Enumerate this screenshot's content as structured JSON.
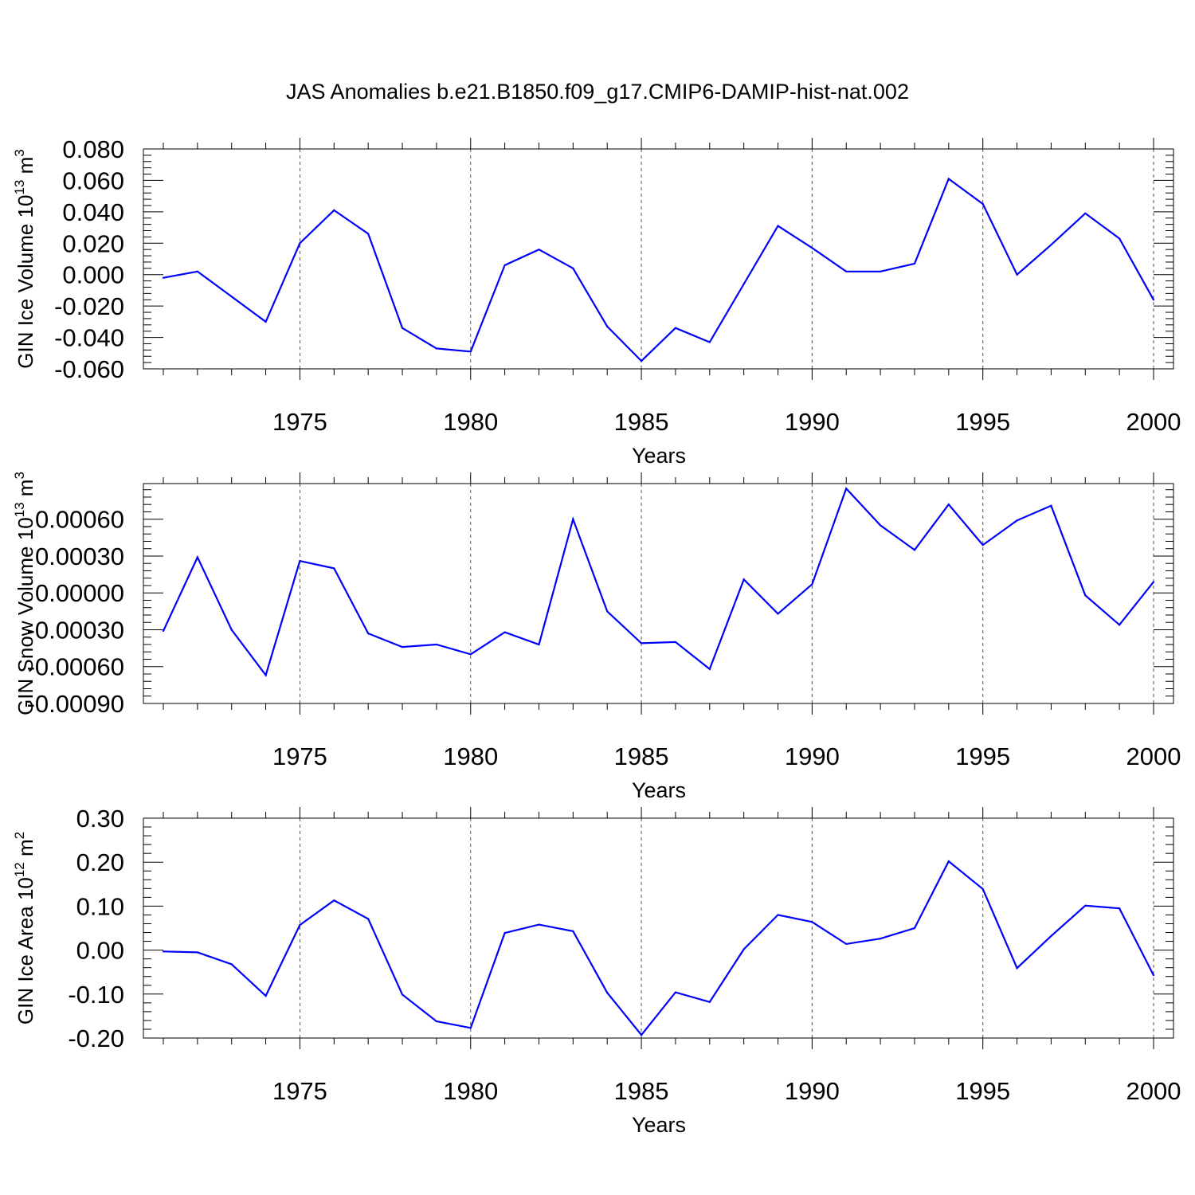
{
  "title": "JAS Anomalies b.e21.B1850.f09_g17.CMIP6-DAMIP-hist-nat.002",
  "colors": {
    "line": "#0000ff",
    "axis": "#000000",
    "grid": "#555555"
  },
  "chart_data": [
    {
      "type": "line",
      "ylabel": {
        "text": "GIN Ice Volume 10",
        "sup": "13",
        "unit": " m",
        "unit_sup": "3"
      },
      "xlabel": "Years",
      "xlim": [
        1971,
        2000
      ],
      "ylim": [
        -0.06,
        0.08
      ],
      "yticks": [
        -0.06,
        -0.04,
        -0.02,
        0.0,
        0.02,
        0.04,
        0.06,
        0.08
      ],
      "yticklabels": [
        "-0.060",
        "-0.040",
        "-0.020",
        "0.000",
        "0.020",
        "0.040",
        "0.060",
        "0.080"
      ],
      "xticks": [
        1975,
        1980,
        1985,
        1990,
        1995,
        2000
      ],
      "xticklabels": [
        "1975",
        "1980",
        "1985",
        "1990",
        "1995",
        "2000"
      ],
      "grid_x": true,
      "x": [
        1971,
        1972,
        1973,
        1974,
        1975,
        1976,
        1977,
        1978,
        1979,
        1980,
        1981,
        1982,
        1983,
        1984,
        1985,
        1986,
        1987,
        1988,
        1989,
        1990,
        1991,
        1992,
        1993,
        1994,
        1995,
        1996,
        1997,
        1998,
        1999,
        2000
      ],
      "series": [
        {
          "values": [
            -0.002,
            0.002,
            -0.014,
            -0.03,
            0.02,
            0.041,
            0.026,
            -0.034,
            -0.047,
            -0.049,
            0.006,
            0.016,
            0.004,
            -0.033,
            -0.055,
            -0.034,
            -0.043,
            -0.006,
            0.031,
            0.017,
            0.002,
            0.002,
            0.007,
            0.061,
            0.045,
            0.0,
            0.019,
            0.039,
            0.023,
            -0.016
          ]
        }
      ]
    },
    {
      "type": "line",
      "ylabel": {
        "text": "GIN Snow Volume 10",
        "sup": "13",
        "unit": " m",
        "unit_sup": "3"
      },
      "xlabel": "Years",
      "xlim": [
        1971,
        2000
      ],
      "ylim": [
        -0.0009,
        0.00089
      ],
      "yticks": [
        -0.0009,
        -0.0006,
        -0.0003,
        0.0,
        0.0003,
        0.0006
      ],
      "yticklabels": [
        "-0.00090",
        "-0.00060",
        "-0.00030",
        "0.00000",
        "0.00030",
        "0.00060"
      ],
      "xticks": [
        1975,
        1980,
        1985,
        1990,
        1995,
        2000
      ],
      "xticklabels": [
        "1975",
        "1980",
        "1985",
        "1990",
        "1995",
        "2000"
      ],
      "grid_x": true,
      "x": [
        1971,
        1972,
        1973,
        1974,
        1975,
        1976,
        1977,
        1978,
        1979,
        1980,
        1981,
        1982,
        1983,
        1984,
        1985,
        1986,
        1987,
        1988,
        1989,
        1990,
        1991,
        1992,
        1993,
        1994,
        1995,
        1996,
        1997,
        1998,
        1999,
        2000
      ],
      "series": [
        {
          "values": [
            -0.00031,
            0.00029,
            -0.0003,
            -0.00067,
            0.00026,
            0.0002,
            -0.00033,
            -0.00044,
            -0.00042,
            -0.0005,
            -0.00032,
            -0.00042,
            0.0006,
            -0.00015,
            -0.00041,
            -0.0004,
            -0.00062,
            0.00011,
            -0.00017,
            7e-05,
            0.00085,
            0.00055,
            0.00035,
            0.00072,
            0.00039,
            0.00059,
            0.00071,
            -2e-05,
            -0.00026,
            9e-05
          ]
        }
      ]
    },
    {
      "type": "line",
      "ylabel": {
        "text": "GIN Ice Area 10",
        "sup": "12",
        "unit": " m",
        "unit_sup": "2"
      },
      "xlabel": "Years",
      "xlim": [
        1971,
        2000
      ],
      "ylim": [
        -0.2,
        0.3
      ],
      "yticks": [
        -0.2,
        -0.1,
        0.0,
        0.1,
        0.2,
        0.3
      ],
      "yticklabels": [
        "-0.20",
        "-0.10",
        "0.00",
        "0.10",
        "0.20",
        "0.30"
      ],
      "xticks": [
        1975,
        1980,
        1985,
        1990,
        1995,
        2000
      ],
      "xticklabels": [
        "1975",
        "1980",
        "1985",
        "1990",
        "1995",
        "2000"
      ],
      "grid_x": true,
      "x": [
        1971,
        1972,
        1973,
        1974,
        1975,
        1976,
        1977,
        1978,
        1979,
        1980,
        1981,
        1982,
        1983,
        1984,
        1985,
        1986,
        1987,
        1988,
        1989,
        1990,
        1991,
        1992,
        1993,
        1994,
        1995,
        1996,
        1997,
        1998,
        1999,
        2000
      ],
      "series": [
        {
          "values": [
            -0.003,
            -0.005,
            -0.032,
            -0.104,
            0.057,
            0.113,
            0.071,
            -0.101,
            -0.162,
            -0.177,
            0.039,
            0.058,
            0.043,
            -0.097,
            -0.193,
            -0.096,
            -0.118,
            0.002,
            0.08,
            0.064,
            0.014,
            0.026,
            0.05,
            0.202,
            0.139,
            -0.041,
            0.032,
            0.101,
            0.095,
            -0.057
          ]
        }
      ]
    }
  ]
}
